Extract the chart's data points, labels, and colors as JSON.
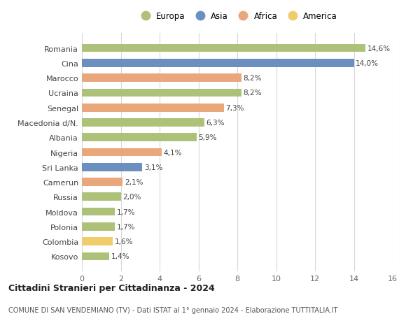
{
  "countries": [
    "Romania",
    "Cina",
    "Marocco",
    "Ucraina",
    "Senegal",
    "Macedonia d/N.",
    "Albania",
    "Nigeria",
    "Sri Lanka",
    "Camerun",
    "Russia",
    "Moldova",
    "Polonia",
    "Colombia",
    "Kosovo"
  ],
  "values": [
    14.6,
    14.0,
    8.2,
    8.2,
    7.3,
    6.3,
    5.9,
    4.1,
    3.1,
    2.1,
    2.0,
    1.7,
    1.7,
    1.6,
    1.4
  ],
  "labels": [
    "14,6%",
    "14,0%",
    "8,2%",
    "8,2%",
    "7,3%",
    "6,3%",
    "5,9%",
    "4,1%",
    "3,1%",
    "2,1%",
    "2,0%",
    "1,7%",
    "1,7%",
    "1,6%",
    "1,4%"
  ],
  "continents": [
    "Europa",
    "Asia",
    "Africa",
    "Europa",
    "Africa",
    "Europa",
    "Europa",
    "Africa",
    "Asia",
    "Africa",
    "Europa",
    "Europa",
    "Europa",
    "America",
    "Europa"
  ],
  "colors": {
    "Europa": "#adc178",
    "Asia": "#6b8fbe",
    "Africa": "#e8a87c",
    "America": "#f0cc6a"
  },
  "legend_order": [
    "Europa",
    "Asia",
    "Africa",
    "America"
  ],
  "title": "Cittadini Stranieri per Cittadinanza - 2024",
  "subtitle": "COMUNE DI SAN VENDEMIANO (TV) - Dati ISTAT al 1° gennaio 2024 - Elaborazione TUTTITALIA.IT",
  "xlim": [
    0,
    16
  ],
  "xticks": [
    0,
    2,
    4,
    6,
    8,
    10,
    12,
    14,
    16
  ],
  "background_color": "#ffffff",
  "grid_color": "#d8d8d8"
}
